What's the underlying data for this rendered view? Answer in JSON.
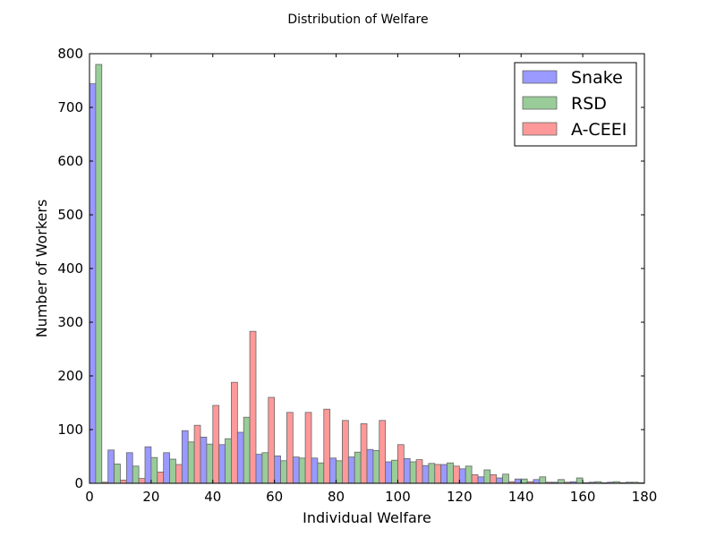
{
  "chart_data": {
    "type": "bar",
    "title": "Distribution of Welfare",
    "xlabel": "Individual Welfare",
    "ylabel": "Number of Workers",
    "xlim": [
      0,
      180
    ],
    "ylim": [
      0,
      800
    ],
    "xticks": [
      "0",
      "20",
      "40",
      "60",
      "80",
      "100",
      "120",
      "140",
      "160",
      "180"
    ],
    "yticks": [
      "0",
      "100",
      "200",
      "300",
      "400",
      "500",
      "600",
      "700",
      "800"
    ],
    "bin_width": 6,
    "bin_starts": [
      0,
      6,
      12,
      18,
      24,
      30,
      36,
      42,
      48,
      54,
      60,
      66,
      72,
      78,
      84,
      90,
      96,
      102,
      108,
      114,
      120,
      126,
      132,
      138,
      144,
      150,
      156,
      162,
      168,
      174
    ],
    "legend": {
      "position": "upper-right"
    },
    "series": [
      {
        "name": "Snake",
        "color": "#9999ff",
        "values": [
          744,
          62,
          57,
          68,
          57,
          98,
          86,
          72,
          95,
          54,
          51,
          49,
          47,
          47,
          49,
          63,
          40,
          46,
          33,
          35,
          27,
          12,
          10,
          8,
          7,
          2,
          3,
          2,
          2,
          2
        ]
      },
      {
        "name": "RSD",
        "color": "#99cc99",
        "values": [
          780,
          36,
          32,
          48,
          45,
          77,
          73,
          83,
          123,
          57,
          42,
          47,
          38,
          42,
          58,
          61,
          43,
          40,
          37,
          38,
          32,
          25,
          17,
          8,
          12,
          7,
          10,
          3,
          3,
          2
        ]
      },
      {
        "name": "A-CEEI",
        "color": "#ff9999",
        "values": [
          2,
          6,
          9,
          21,
          35,
          108,
          145,
          188,
          283,
          160,
          132,
          132,
          138,
          117,
          111,
          117,
          72,
          44,
          35,
          32,
          16,
          16,
          3,
          3,
          2,
          2,
          1,
          1,
          1,
          1
        ]
      }
    ]
  }
}
